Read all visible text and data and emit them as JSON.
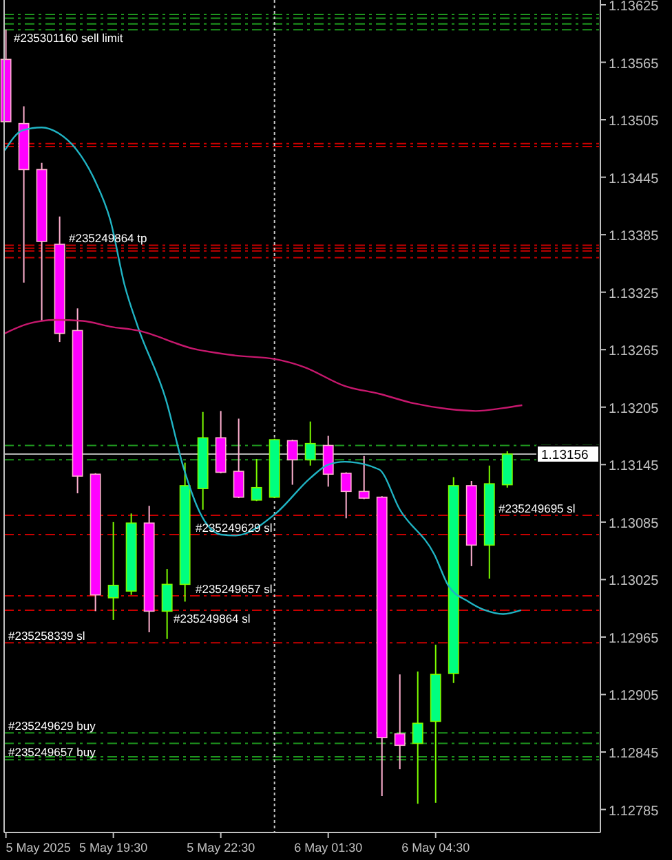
{
  "chart_data": {
    "type": "candlestick",
    "x": [
      "2025-05-05T16:30",
      "2025-05-05T17:00",
      "2025-05-05T17:30",
      "2025-05-05T18:00",
      "2025-05-05T18:30",
      "2025-05-05T19:00",
      "2025-05-05T19:30",
      "2025-05-05T20:00",
      "2025-05-05T20:30",
      "2025-05-05T21:00",
      "2025-05-05T21:30",
      "2025-05-05T22:00",
      "2025-05-05T22:30",
      "2025-05-05T23:00",
      "2025-05-05T23:30",
      "2025-05-06T00:00",
      "2025-05-06T00:30",
      "2025-05-06T01:00",
      "2025-05-06T01:30",
      "2025-05-06T02:00",
      "2025-05-06T02:30",
      "2025-05-06T03:00",
      "2025-05-06T03:30",
      "2025-05-06T04:00",
      "2025-05-06T04:30",
      "2025-05-06T05:00",
      "2025-05-06T05:30",
      "2025-05-06T06:00",
      "2025-05-06T06:30"
    ],
    "ohlc": [
      [
        1.13568,
        1.13599,
        1.13503,
        1.13503
      ],
      [
        1.13501,
        1.13519,
        1.13335,
        1.13453
      ],
      [
        1.13453,
        1.1346,
        1.13295,
        1.13378
      ],
      [
        1.13375,
        1.13404,
        1.13273,
        1.13282
      ],
      [
        1.13285,
        1.13308,
        1.13115,
        1.13133
      ],
      [
        1.13135,
        1.13136,
        1.12992,
        1.13009
      ],
      [
        1.13006,
        1.13085,
        1.12983,
        1.13019
      ],
      [
        1.13013,
        1.13094,
        1.13009,
        1.13084
      ],
      [
        1.13084,
        1.13102,
        1.1297,
        1.12992
      ],
      [
        1.12992,
        1.13036,
        1.12963,
        1.1302
      ],
      [
        1.1302,
        1.13147,
        1.13002,
        1.13123
      ],
      [
        1.1312,
        1.132,
        1.13098,
        1.13173
      ],
      [
        1.13173,
        1.13201,
        1.13136,
        1.13137
      ],
      [
        1.13138,
        1.13193,
        1.1311,
        1.13111
      ],
      [
        1.13108,
        1.13151,
        1.13107,
        1.13121
      ],
      [
        1.13111,
        1.13172,
        1.1311,
        1.13171
      ],
      [
        1.1317,
        1.13171,
        1.13124,
        1.1315
      ],
      [
        1.1315,
        1.1319,
        1.13144,
        1.13167
      ],
      [
        1.13165,
        1.13175,
        1.13122,
        1.13135
      ],
      [
        1.13136,
        1.13137,
        1.13089,
        1.13117
      ],
      [
        1.13117,
        1.13154,
        1.13109,
        1.1311
      ],
      [
        1.13111,
        1.13112,
        1.12799,
        1.1286
      ],
      [
        1.12864,
        1.12926,
        1.12827,
        1.12852
      ],
      [
        1.12854,
        1.12929,
        1.12791,
        1.12875
      ],
      [
        1.12877,
        1.12957,
        1.12792,
        1.12926
      ],
      [
        1.12927,
        1.13132,
        1.12917,
        1.13123
      ],
      [
        1.13123,
        1.13128,
        1.13039,
        1.13061
      ],
      [
        1.13061,
        1.13144,
        1.13026,
        1.13125
      ],
      [
        1.13124,
        1.13159,
        1.13121,
        1.13156
      ]
    ],
    "colors": [
      "#ff00ff",
      "#ff00ff",
      "#ff00ff",
      "#ff00ff",
      "#ff00ff",
      "#ff00ff",
      "#00ff7f",
      "#00ff7f",
      "#ff00ff",
      "#00ff7f",
      "#00ff7f",
      "#00ff7f",
      "#ff00ff",
      "#ff00ff",
      "#00ff7f",
      "#00ff7f",
      "#ff00ff",
      "#00ff7f",
      "#ff00ff",
      "#ff00ff",
      "#ff00ff",
      "#ff00ff",
      "#ff00ff",
      "#00ff7f",
      "#00ff7f",
      "#00ff7f",
      "#ff00ff",
      "#00ff7f",
      "#00ff7f"
    ],
    "series": [
      {
        "type": "line",
        "color": "#20b4c4",
        "x": [
          "2025-05-05T16:28",
          "2025-05-05T16:58",
          "2025-05-05T17:30",
          "2025-05-05T17:58",
          "2025-05-05T18:28",
          "2025-05-05T18:58",
          "2025-05-05T19:25",
          "2025-05-05T19:49",
          "2025-05-05T20:11",
          "2025-05-05T20:58",
          "2025-05-05T21:28",
          "2025-05-05T21:55",
          "2025-05-05T22:30",
          "2025-05-05T22:55",
          "2025-05-06T00:02",
          "2025-05-06T01:00",
          "2025-05-06T01:30",
          "2025-05-06T01:58",
          "2025-05-06T02:55",
          "2025-05-06T03:30",
          "2025-05-06T04:28",
          "2025-05-06T04:51",
          "2025-05-06T05:25",
          "2025-05-06T05:53",
          "2025-05-06T06:23",
          "2025-05-06T06:53"
        ],
        "values": [
          1.13473,
          1.13494,
          1.13497,
          1.13491,
          1.13474,
          1.13443,
          1.134,
          1.13332,
          1.13289,
          1.13213,
          1.13141,
          1.13095,
          1.13072,
          1.13071,
          1.13094,
          1.13131,
          1.13145,
          1.13148,
          1.1314,
          1.13098,
          1.13051,
          1.13019,
          1.13002,
          1.12993,
          1.12989,
          1.12993
        ]
      },
      {
        "type": "line",
        "color": "#c8186e",
        "x": [
          "2025-05-05T16:28",
          "2025-05-05T17:07",
          "2025-05-05T17:53",
          "2025-05-05T18:39",
          "2025-05-05T19:25",
          "2025-05-05T20:11",
          "2025-05-05T21:44",
          "2025-05-05T22:53",
          "2025-05-06T00:02",
          "2025-05-06T00:49",
          "2025-05-06T01:58",
          "2025-05-06T02:55",
          "2025-05-06T03:53",
          "2025-05-06T04:51",
          "2025-05-06T05:37",
          "2025-05-06T06:23",
          "2025-05-06T06:55"
        ],
        "values": [
          1.13282,
          1.13292,
          1.13296,
          1.13295,
          1.13289,
          1.13285,
          1.13266,
          1.13259,
          1.13255,
          1.13247,
          1.13227,
          1.13219,
          1.13209,
          1.13203,
          1.13201,
          1.13204,
          1.13207
        ]
      }
    ],
    "xlim": [
      "2025-05-05T16:27",
      "2025-05-06T09:06"
    ],
    "xticks": [
      {
        "value": "2025-05-05T16:30",
        "label": "5 May 2025"
      },
      {
        "value": "2025-05-05T19:30",
        "label": "5 May 19:30"
      },
      {
        "value": "2025-05-05T22:30",
        "label": "5 May 22:30"
      },
      {
        "value": "2025-05-06T01:30",
        "label": "6 May 01:30"
      },
      {
        "value": "2025-05-06T04:30",
        "label": "6 May 04:30"
      }
    ],
    "ylim": [
      1.12761,
      1.1363
    ],
    "yticks": [
      1.12785,
      1.12845,
      1.12905,
      1.12965,
      1.13025,
      1.13085,
      1.13145,
      1.13205,
      1.13265,
      1.13325,
      1.13385,
      1.13445,
      1.13505,
      1.13565,
      1.13625
    ],
    "ref_lines": [
      {
        "axis": "y",
        "value": 1.13615,
        "color": "#1e961e",
        "line_style": "dashed"
      },
      {
        "axis": "y",
        "value": 1.13611,
        "color": "#1e961e",
        "line_style": "dashed"
      },
      {
        "axis": "y",
        "value": 1.13605,
        "color": "#1e961e",
        "line_style": "dashed"
      },
      {
        "axis": "y",
        "value": 1.13599,
        "label": "#235301160 sell limit",
        "color": "#1e961e",
        "line_style": "dashed"
      },
      {
        "axis": "y",
        "value": 1.1348,
        "color": "#c80000",
        "line_style": "dashed"
      },
      {
        "axis": "y",
        "value": 1.13477,
        "color": "#c80000",
        "line_style": "dashed"
      },
      {
        "axis": "y",
        "value": 1.13374,
        "label": "#235249864 tp",
        "color": "#c80000",
        "line_style": "dashed"
      },
      {
        "axis": "y",
        "value": 1.13371,
        "color": "#c80000",
        "line_style": "dashed"
      },
      {
        "axis": "y",
        "value": 1.13368,
        "color": "#c80000",
        "line_style": "dashed"
      },
      {
        "axis": "y",
        "value": 1.13361,
        "color": "#c80000",
        "line_style": "dashed"
      },
      {
        "axis": "y",
        "value": 1.13165,
        "color": "#1e961e",
        "line_style": "dashed"
      },
      {
        "axis": "y",
        "value": 1.1315,
        "color": "#1e961e",
        "line_style": "dashed"
      },
      {
        "axis": "y",
        "value": 1.13156,
        "label": "1.13156",
        "color": "#b4b4b4",
        "line_style": "solid"
      },
      {
        "axis": "y",
        "value": 1.13092,
        "label": "#235249695 sl",
        "color": "#c80000",
        "line_style": "dashed"
      },
      {
        "axis": "y",
        "value": 1.13072,
        "label": "#235249629 sl",
        "color": "#c80000",
        "line_style": "dashed"
      },
      {
        "axis": "y",
        "value": 1.13008,
        "label": "#235249657 sl",
        "color": "#c80000",
        "line_style": "dashed"
      },
      {
        "axis": "y",
        "value": 1.12993,
        "label": "#235249864 sl",
        "color": "#c80000",
        "line_style": "dashed"
      },
      {
        "axis": "y",
        "value": 1.12959,
        "label": "#235258339 sl",
        "color": "#c80000",
        "line_style": "dashed"
      },
      {
        "axis": "y",
        "value": 1.12865,
        "label": "#235249629 buy",
        "color": "#1e961e",
        "line_style": "dashed"
      },
      {
        "axis": "y",
        "value": 1.12854,
        "label": "#235249657 buy",
        "color": "#1e961e",
        "line_style": "dashed"
      },
      {
        "axis": "y",
        "value": 1.1284,
        "color": "#1e961e",
        "line_style": "dashed"
      },
      {
        "axis": "y",
        "value": 1.12837,
        "color": "#1e961e",
        "line_style": "dashed"
      },
      {
        "axis": "x",
        "value": "2025-05-06T00:00",
        "color": "#c8c8c8",
        "line_style": "dotted"
      }
    ]
  }
}
